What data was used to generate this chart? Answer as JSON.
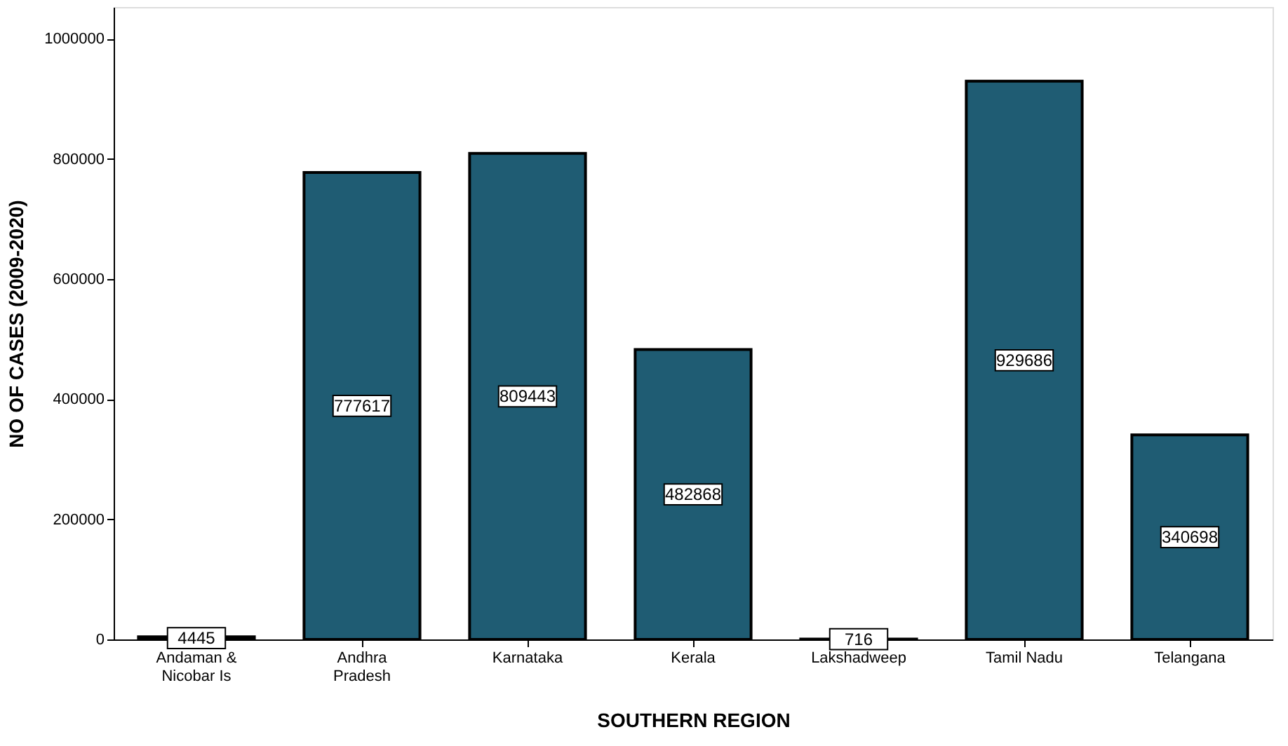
{
  "chart_data": {
    "type": "bar",
    "xlabel": "SOUTHERN REGION",
    "ylabel": "NO OF CASES (2009-2020)",
    "categories": [
      "Andaman & Nicobar Is",
      "Andhra Pradesh",
      "Karnataka",
      "Kerala",
      "Lakshadweep",
      "Tamil Nadu",
      "Telangana"
    ],
    "values": [
      4445,
      777617,
      809443,
      482868,
      716,
      929686,
      340698
    ],
    "color": "#1f5c73",
    "ylim": [
      0,
      1053000
    ],
    "yticks": [
      0,
      200000,
      400000,
      600000,
      800000,
      1000000
    ],
    "grid": false,
    "data_labels": true
  }
}
